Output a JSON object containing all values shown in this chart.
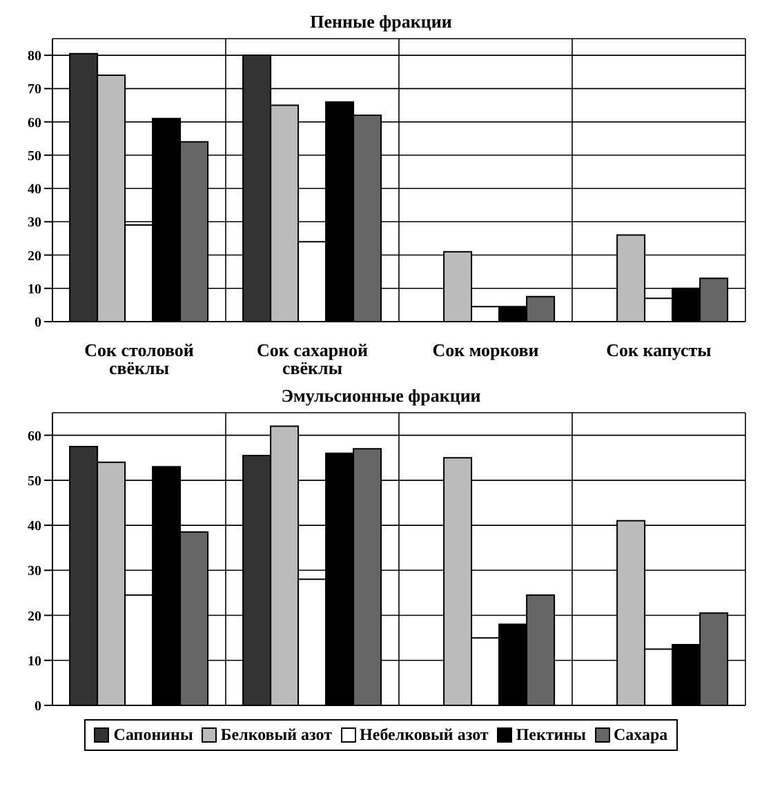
{
  "chart_data": [
    {
      "type": "bar",
      "title": "Пенные фракции",
      "categories": [
        "Сок столовой свёклы",
        "Сок сахарной свёклы",
        "Сок моркови",
        "Сок капусты"
      ],
      "ylim": [
        0,
        85
      ],
      "yticks": [
        0,
        10,
        20,
        30,
        40,
        50,
        60,
        70,
        80
      ],
      "grid": true,
      "legend": false,
      "series": [
        {
          "color": "#333333",
          "values": [
            80.5,
            80,
            null,
            null
          ]
        },
        {
          "color": "#bbbbbb",
          "values": [
            74,
            65,
            21,
            26
          ]
        },
        {
          "color": "#ffffff",
          "values": [
            29,
            24,
            4.5,
            7
          ]
        },
        {
          "color": "#000000",
          "values": [
            61,
            66,
            4.5,
            10
          ]
        },
        {
          "color": "#666666",
          "values": [
            54,
            62,
            7.5,
            13
          ]
        }
      ]
    },
    {
      "type": "bar",
      "title": "Эмульсионные фракции",
      "categories": [
        null,
        null,
        null,
        null
      ],
      "ylim": [
        0,
        65
      ],
      "yticks": [
        0,
        10,
        20,
        30,
        40,
        50,
        60
      ],
      "grid": true,
      "legend": "bottom",
      "tick_labels": "y",
      "series": [
        {
          "name": "Сапонины",
          "color": "#333333",
          "values": [
            57.5,
            55.5,
            null,
            null
          ]
        },
        {
          "name": "Белковый азот",
          "color": "#bbbbbb",
          "values": [
            54,
            62,
            55,
            41
          ]
        },
        {
          "name": "Небелковый азот",
          "color": "#ffffff",
          "values": [
            24.5,
            28,
            15,
            12.5
          ]
        },
        {
          "name": "Пектины",
          "color": "#000000",
          "values": [
            53,
            56,
            18,
            13.5
          ]
        },
        {
          "name": "Сахара",
          "color": "#666666",
          "values": [
            38.5,
            57,
            24.5,
            20.5
          ]
        }
      ]
    }
  ]
}
